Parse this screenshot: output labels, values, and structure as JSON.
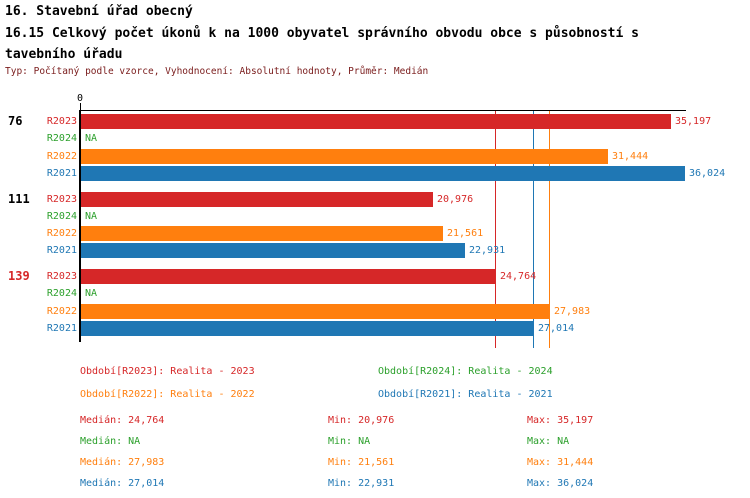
{
  "header": {
    "title_line1": "16. Stavební úřad obecný",
    "title_line2": "16.15 Celkový počet úkonů k na 1000 obyvatel správního obvodu obce s působností s",
    "title_line3": "tavebního úřadu",
    "subtitle": "Typ: Počítaný podle vzorce, Vyhodnocení: Absolutní hodnoty, Průměr: Medián"
  },
  "colors": {
    "R2023": "#d62728",
    "R2024": "#2ca02c",
    "R2022": "#ff7f0e",
    "R2021": "#1f77b4",
    "axis": "#000000",
    "group_label_default": "#000000",
    "group_label_highlight": "#d62728",
    "subtitle_text": "#7a1c1c"
  },
  "chart_data": {
    "type": "bar",
    "orientation": "horizontal",
    "title": "16.15 Celkový počet úkonů k na 1000 obyvatel správního obvodu obce s působností stavebního úřadu",
    "xlabel": "",
    "ylabel": "",
    "xlim": [
      0,
      36024
    ],
    "axis_origin_label": "0",
    "grid": false,
    "series_order": [
      "R2023",
      "R2024",
      "R2022",
      "R2021"
    ],
    "groups": [
      {
        "label": "76",
        "highlighted": false,
        "values": {
          "R2023": 35197,
          "R2024": null,
          "R2022": 31444,
          "R2021": 36024
        },
        "display": {
          "R2023": "35,197",
          "R2024": "NA",
          "R2022": "31,444",
          "R2021": "36,024"
        }
      },
      {
        "label": "111",
        "highlighted": false,
        "values": {
          "R2023": 20976,
          "R2024": null,
          "R2022": 21561,
          "R2021": 22931
        },
        "display": {
          "R2023": "20,976",
          "R2024": "NA",
          "R2022": "21,561",
          "R2021": "22,931"
        }
      },
      {
        "label": "139",
        "highlighted": true,
        "values": {
          "R2023": 24764,
          "R2024": null,
          "R2022": 27983,
          "R2021": 27014
        },
        "display": {
          "R2023": "24,764",
          "R2024": "NA",
          "R2022": "27,983",
          "R2021": "27,014"
        }
      }
    ],
    "reference_lines": [
      {
        "series": "R2023",
        "value": 24764
      },
      {
        "series": "R2021",
        "value": 27014
      },
      {
        "series": "R2022",
        "value": 27983
      }
    ],
    "legend": {
      "position": "bottom",
      "items": [
        {
          "series": "R2023",
          "label": "Období[R2023]: Realita - 2023"
        },
        {
          "series": "R2024",
          "label": "Období[R2024]: Realita - 2024"
        },
        {
          "series": "R2022",
          "label": "Období[R2022]: Realita - 2022"
        },
        {
          "series": "R2021",
          "label": "Období[R2021]: Realita - 2021"
        }
      ]
    },
    "stats": {
      "labels": {
        "median": "Medián:",
        "min": "Min:",
        "max": "Max:"
      },
      "rows": [
        {
          "series": "R2023",
          "median": "24,764",
          "min": "20,976",
          "max": "35,197"
        },
        {
          "series": "R2024",
          "median": "NA",
          "min": "NA",
          "max": "NA"
        },
        {
          "series": "R2022",
          "median": "27,983",
          "min": "21,561",
          "max": "31,444"
        },
        {
          "series": "R2021",
          "median": "27,014",
          "min": "22,931",
          "max": "36,024"
        }
      ]
    }
  }
}
